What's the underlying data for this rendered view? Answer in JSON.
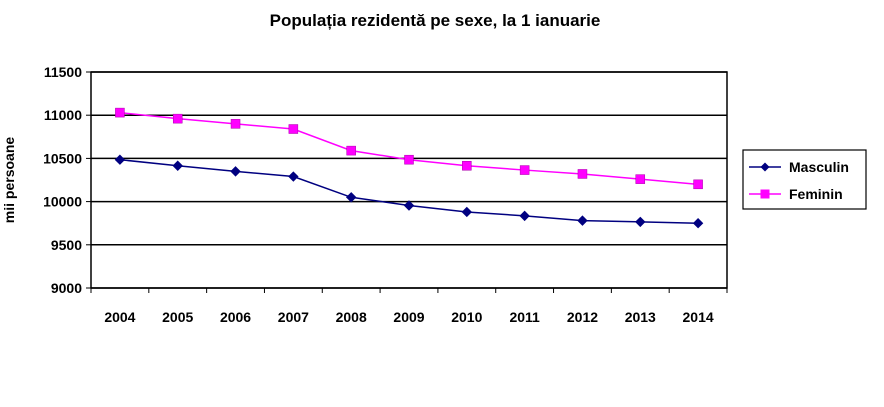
{
  "chart_data": {
    "type": "line",
    "title": "Populația rezidentă pe sexe, la 1 ianuarie",
    "xlabel": "",
    "ylabel": "mii persoane",
    "categories": [
      "2004",
      "2005",
      "2006",
      "2007",
      "2008",
      "2009",
      "2010",
      "2011",
      "2012",
      "2013",
      "2014"
    ],
    "ylim": [
      9000,
      11500
    ],
    "yticks": [
      "9000",
      "9500",
      "10000",
      "10500",
      "11000",
      "11500"
    ],
    "grid": "horizontal",
    "legend_position": "right",
    "series": [
      {
        "name": "Masculin",
        "color": "#000080",
        "marker": "diamond",
        "values": [
          10485,
          10415,
          10350,
          10290,
          10050,
          9955,
          9880,
          9835,
          9780,
          9765,
          9750
        ]
      },
      {
        "name": "Feminin",
        "color": "#FF00FF",
        "marker": "square",
        "values": [
          11030,
          10960,
          10900,
          10840,
          10590,
          10485,
          10415,
          10365,
          10320,
          10260,
          10200
        ]
      }
    ]
  }
}
